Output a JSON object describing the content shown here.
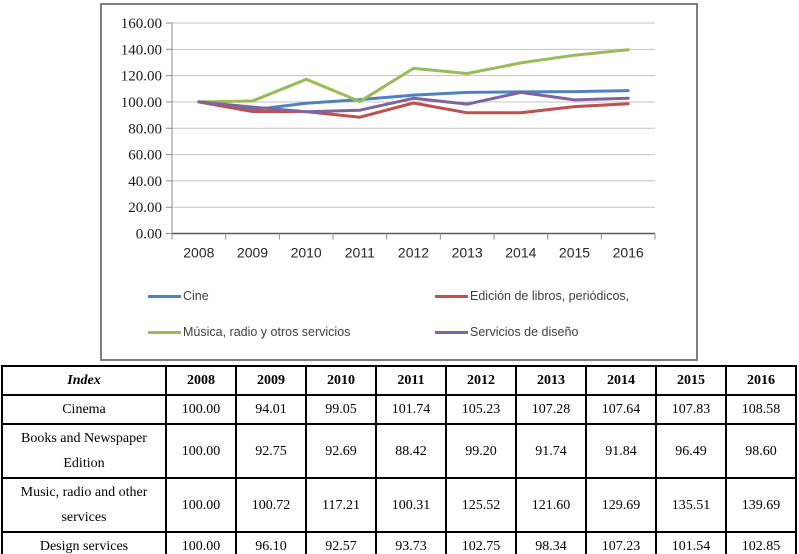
{
  "chart": {
    "border_color": "#7f7f7f",
    "grid_color": "#c3c3c3",
    "axis_color": "#595959",
    "tick_color": "#8a8a8a"
  },
  "chart_data": {
    "type": "line",
    "title": "",
    "xlabel": "",
    "ylabel": "",
    "x": [
      "2008",
      "2009",
      "2010",
      "2011",
      "2012",
      "2013",
      "2014",
      "2015",
      "2016"
    ],
    "series": [
      {
        "name": "Cine",
        "color": "#4F81BD",
        "values": [
          100.0,
          94.01,
          99.05,
          101.74,
          105.23,
          107.28,
          107.64,
          107.83,
          108.58
        ]
      },
      {
        "name": "Edición de libros, periódicos,",
        "color": "#C0504D",
        "values": [
          100.0,
          92.75,
          92.69,
          88.42,
          99.2,
          91.74,
          91.84,
          96.49,
          98.6
        ]
      },
      {
        "name": "Música, radio y otros servicios",
        "color": "#9BBB59",
        "values": [
          100.0,
          100.72,
          117.21,
          100.31,
          125.52,
          121.6,
          129.69,
          135.51,
          139.69
        ]
      },
      {
        "name": "Servicios de diseño",
        "color": "#8064A2",
        "values": [
          100.0,
          96.1,
          92.57,
          93.73,
          102.75,
          98.34,
          107.23,
          101.54,
          102.85
        ]
      }
    ],
    "ylim": [
      0,
      160
    ],
    "y_tick_step": 20,
    "y_tick_labels": [
      "0.00",
      "20.00",
      "40.00",
      "60.00",
      "80.00",
      "100.00",
      "120.00",
      "140.00",
      "160.00"
    ],
    "grid": true,
    "legend_position": "bottom-inside"
  },
  "table": {
    "header_label": "Index",
    "years": [
      "2008",
      "2009",
      "2010",
      "2011",
      "2012",
      "2013",
      "2014",
      "2015",
      "2016"
    ],
    "rows": [
      {
        "label": "Cinema",
        "values": [
          "100.00",
          "94.01",
          "99.05",
          "101.74",
          "105.23",
          "107.28",
          "107.64",
          "107.83",
          "108.58"
        ]
      },
      {
        "label": "Books and Newspaper Edition",
        "values": [
          "100.00",
          "92.75",
          "92.69",
          "88.42",
          "99.20",
          "91.74",
          "91.84",
          "96.49",
          "98.60"
        ]
      },
      {
        "label": "Music, radio and other services",
        "values": [
          "100.00",
          "100.72",
          "117.21",
          "100.31",
          "125.52",
          "121.60",
          "129.69",
          "135.51",
          "139.69"
        ]
      },
      {
        "label": "Design services",
        "values": [
          "100.00",
          "96.10",
          "92.57",
          "93.73",
          "102.75",
          "98.34",
          "107.23",
          "101.54",
          "102.85"
        ]
      }
    ]
  }
}
